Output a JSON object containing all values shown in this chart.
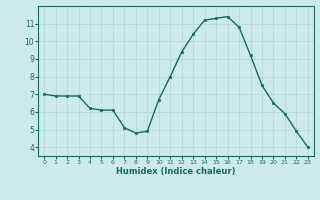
{
  "x": [
    0,
    1,
    2,
    3,
    4,
    5,
    6,
    7,
    8,
    9,
    10,
    11,
    12,
    13,
    14,
    15,
    16,
    17,
    18,
    19,
    20,
    21,
    22,
    23
  ],
  "y": [
    7.0,
    6.9,
    6.9,
    6.9,
    6.2,
    6.1,
    6.1,
    5.1,
    4.8,
    4.9,
    6.7,
    8.0,
    9.4,
    10.4,
    11.2,
    11.3,
    11.4,
    10.8,
    9.2,
    7.5,
    6.5,
    5.9,
    4.9,
    4.0
  ],
  "xlabel": "Humidex (Indice chaleur)",
  "ylim": [
    3.5,
    12.0
  ],
  "xlim": [
    -0.5,
    23.5
  ],
  "yticks": [
    4,
    5,
    6,
    7,
    8,
    9,
    10,
    11
  ],
  "xtick_labels": [
    "0",
    "1",
    "2",
    "3",
    "4",
    "5",
    "6",
    "7",
    "8",
    "9",
    "10",
    "11",
    "12",
    "13",
    "14",
    "15",
    "16",
    "17",
    "18",
    "19",
    "20",
    "21",
    "22",
    "23"
  ],
  "line_color": "#1a6b5a",
  "marker_color": "#1a6b5a",
  "bg_color": "#cceaea",
  "grid_color": "#b8d8d8",
  "axis_color": "#1a6b5a",
  "tick_color": "#1a6b5a",
  "label_color": "#1a6b5a"
}
